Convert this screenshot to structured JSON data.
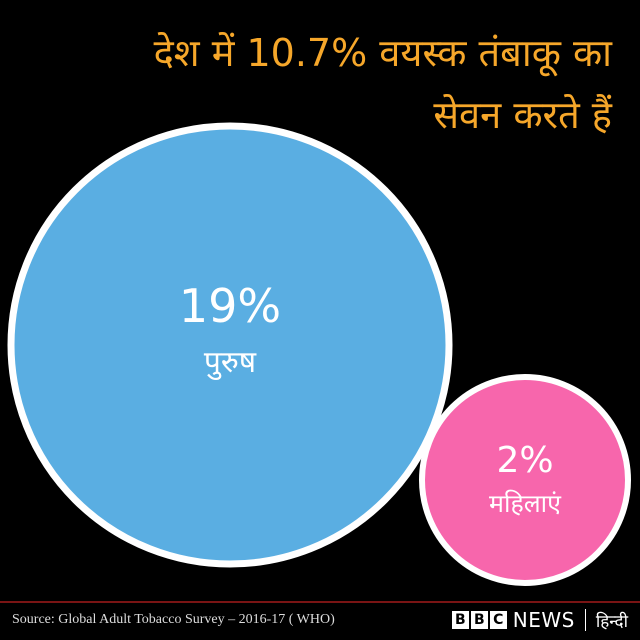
{
  "title": {
    "line1": "देश में 10.7% वयस्क तंबाकू का",
    "line2": "सेवन करते हैं"
  },
  "chart_data": {
    "type": "bubble",
    "series": [
      {
        "label": "पुरुष",
        "value": 19,
        "value_label": "19%",
        "color": "#5aaee2"
      },
      {
        "label": "महिलाएं",
        "value": 2,
        "value_label": "2%",
        "color": "#f766ac"
      }
    ]
  },
  "footer": {
    "source": "Source: Global Adult Tobacco Survey – 2016-17 ( WHO)",
    "brand_letters": [
      "B",
      "B",
      "C"
    ],
    "brand_news": "NEWS",
    "brand_lang": "हिन्दी"
  }
}
